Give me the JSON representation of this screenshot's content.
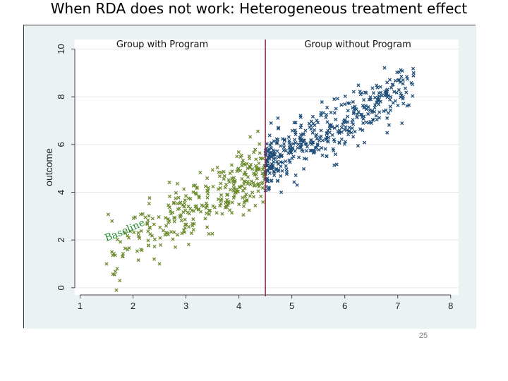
{
  "slide": {
    "title": "When RDA does not work: Heterogeneous treatment effect",
    "page_number": "25"
  },
  "colors": {
    "with_program": "#6b8b2e",
    "without_program": "#1f4e79",
    "cutoff_line": "#a0203c",
    "baseline_label": "#1f8a2e",
    "plot_bg": "#ffffff",
    "outer_bg": "#eaf2f3",
    "grid": "#e6e6e6"
  },
  "chart_data": {
    "type": "scatter",
    "title": "",
    "xlabel": "",
    "ylabel": "outcome",
    "xlim": [
      0.9,
      8.15
    ],
    "ylim": [
      -0.3,
      10.4
    ],
    "x_ticks": [
      1,
      2,
      3,
      4,
      5,
      6,
      7,
      8
    ],
    "y_ticks": [
      0,
      2,
      4,
      6,
      8,
      10
    ],
    "x_tick_labels": [
      "1",
      "2",
      "3",
      "4",
      "5",
      "6",
      "7",
      "8"
    ],
    "y_tick_labels": [
      "0",
      "2",
      "4",
      "6",
      "8",
      "10"
    ],
    "grid": true,
    "cutoff_x": 4.5,
    "annotations": {
      "left_group": "Group with Program",
      "right_group": "Group without Program",
      "baseline": "Baseline"
    },
    "series": [
      {
        "name": "Group with Program",
        "marker": "x",
        "trend": {
          "slope": 1.2,
          "intercept": -0.4,
          "x_range": [
            1.5,
            4.5
          ],
          "sd": 0.6
        },
        "points": [
          {
            "x": 1.5,
            "y": 1.0
          },
          {
            "x": 1.6,
            "y": 1.5
          },
          {
            "x": 1.65,
            "y": 0.55
          },
          {
            "x": 1.7,
            "y": 0.8
          },
          {
            "x": 1.75,
            "y": 0.3
          },
          {
            "x": 1.8,
            "y": 1.3
          },
          {
            "x": 1.9,
            "y": 1.6
          },
          {
            "x": 2.1,
            "y": 2.3
          },
          {
            "x": 2.4,
            "y": 1.2
          },
          {
            "x": 2.5,
            "y": 1.0
          },
          {
            "x": 2.8,
            "y": 1.7
          }
        ]
      },
      {
        "name": "Group without Program",
        "marker": "x",
        "trend": {
          "slope": 1.25,
          "intercept": -0.55,
          "x_range": [
            4.5,
            7.3
          ],
          "sd": 0.55
        },
        "points": [
          {
            "x": 7.3,
            "y": 9.0
          },
          {
            "x": 7.1,
            "y": 8.7
          },
          {
            "x": 6.9,
            "y": 8.5
          },
          {
            "x": 6.8,
            "y": 8.6
          },
          {
            "x": 6.3,
            "y": 8.1
          },
          {
            "x": 5.8,
            "y": 7.9
          },
          {
            "x": 4.8,
            "y": 4.0
          },
          {
            "x": 5.1,
            "y": 4.3
          }
        ]
      }
    ]
  }
}
